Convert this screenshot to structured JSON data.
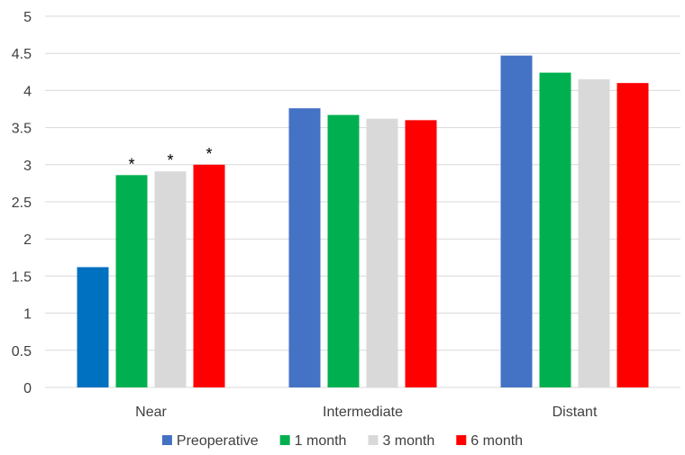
{
  "chart_data": {
    "type": "bar",
    "categories": [
      "Near",
      "Intermediate",
      "Distant"
    ],
    "series": [
      {
        "name": "Preoperative",
        "values": [
          1.62,
          3.76,
          4.47
        ],
        "color": "#4472C4"
      },
      {
        "name": "1 month",
        "values": [
          2.86,
          3.67,
          4.24
        ],
        "color": "#00B050"
      },
      {
        "name": "3 month",
        "values": [
          2.91,
          3.62,
          4.15
        ],
        "color": "#D9D9D9"
      },
      {
        "name": "6 month",
        "values": [
          3.0,
          3.6,
          4.1
        ],
        "color": "#FF0000"
      }
    ],
    "point_colors": [
      {
        "series": 0,
        "category": 0,
        "color": "#0070C0"
      }
    ],
    "annotations": [
      {
        "series": 1,
        "category": 0,
        "text": "*"
      },
      {
        "series": 2,
        "category": 0,
        "text": "*"
      },
      {
        "series": 3,
        "category": 0,
        "text": "*"
      }
    ],
    "ylim": [
      0,
      5
    ],
    "yticks": [
      "0",
      "0.5",
      "1",
      "1.5",
      "2",
      "2.5",
      "3",
      "3.5",
      "4",
      "4.5",
      "5"
    ],
    "grid": true,
    "legend_position": "bottom",
    "title": "",
    "xlabel": "",
    "ylabel": ""
  }
}
